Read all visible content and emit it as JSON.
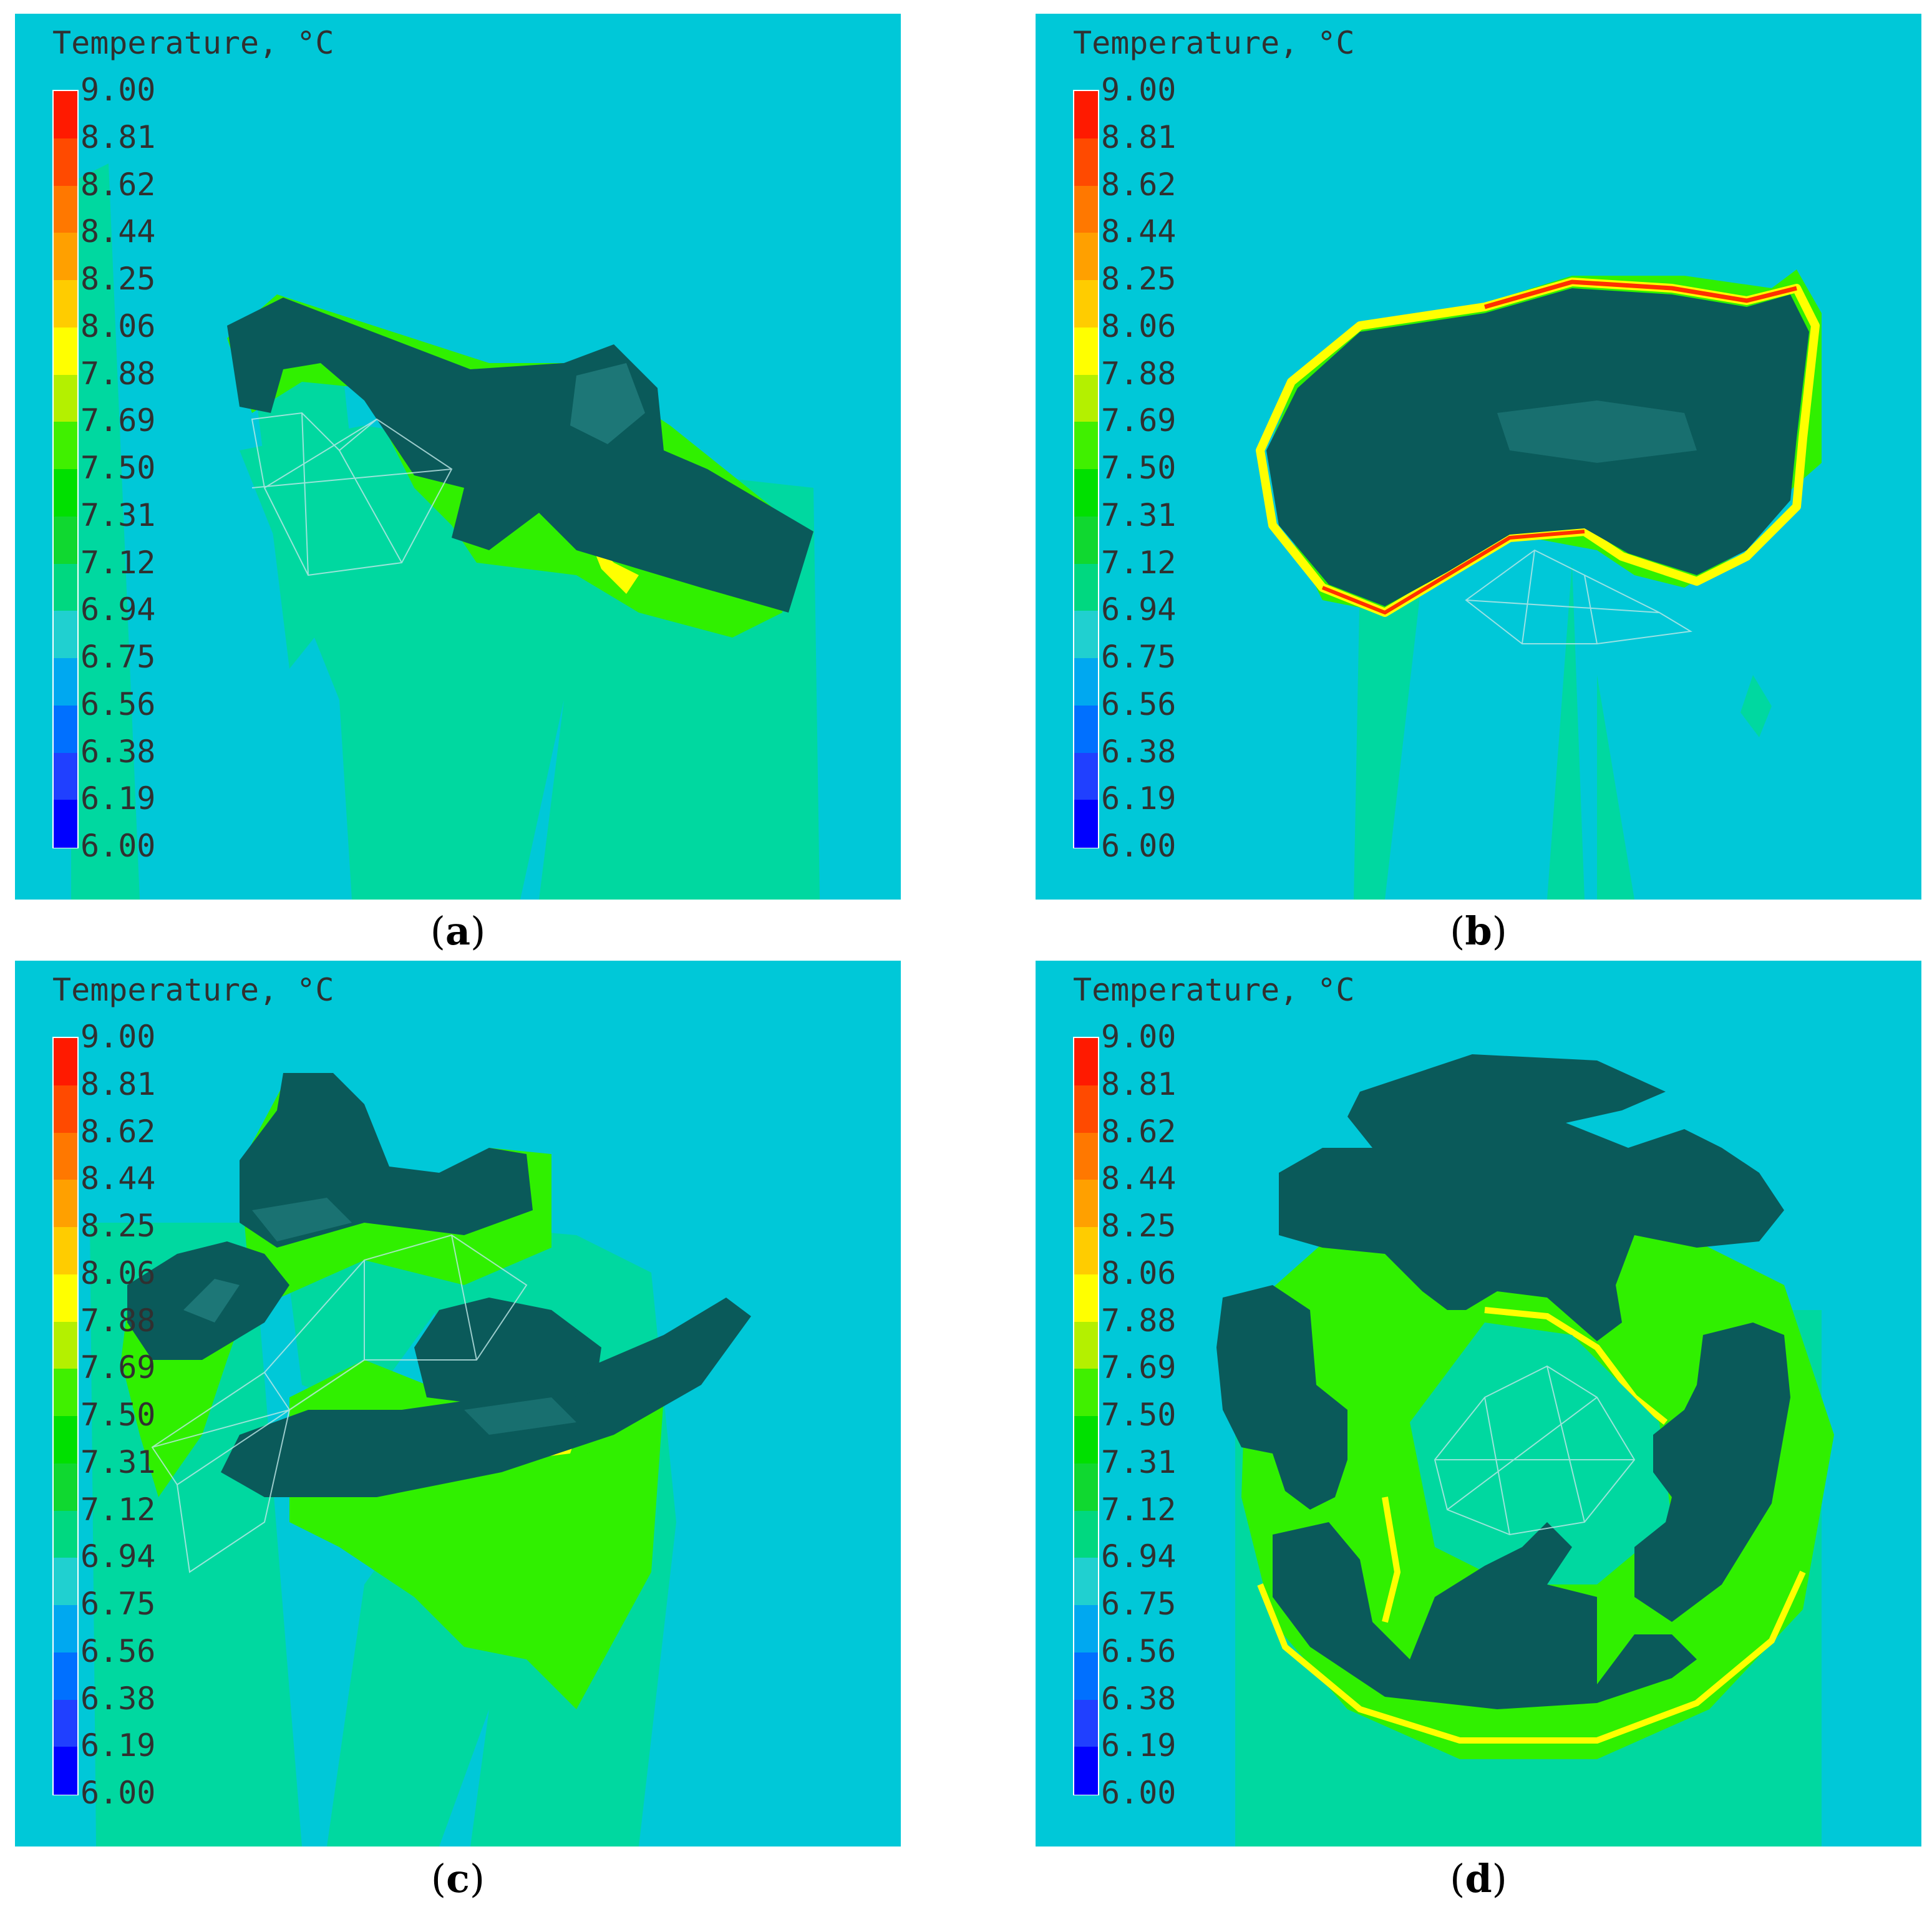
{
  "colorbar": {
    "title": "Temperature, °C",
    "ticks": [
      "9.00",
      "8.81",
      "8.62",
      "8.44",
      "8.25",
      "8.06",
      "7.88",
      "7.69",
      "7.50",
      "7.31",
      "7.12",
      "6.94",
      "6.75",
      "6.56",
      "6.38",
      "6.19",
      "6.00"
    ],
    "colors": [
      "#ff1a00",
      "#ff4a00",
      "#ff7800",
      "#ffa000",
      "#ffcc00",
      "#ffff00",
      "#b4f000",
      "#40f000",
      "#00e000",
      "#10d830",
      "#00d880",
      "#20d0d0",
      "#00a8f0",
      "#0070ff",
      "#2040ff",
      "#0000ff"
    ]
  },
  "colors": {
    "background": "#00c8d8",
    "tissue": "#00d8a0",
    "warm_band": "#30f000",
    "hot_edge": "#ffff00",
    "very_hot_edge": "#ff3000",
    "solid": "#0a5a5a",
    "solid_highlight": "#2a8a8a",
    "wire": "#c0e8e8"
  },
  "panels": [
    {
      "id": "a",
      "caption": "a"
    },
    {
      "id": "b",
      "caption": "b"
    },
    {
      "id": "c",
      "caption": "c"
    },
    {
      "id": "d",
      "caption": "d"
    }
  ]
}
